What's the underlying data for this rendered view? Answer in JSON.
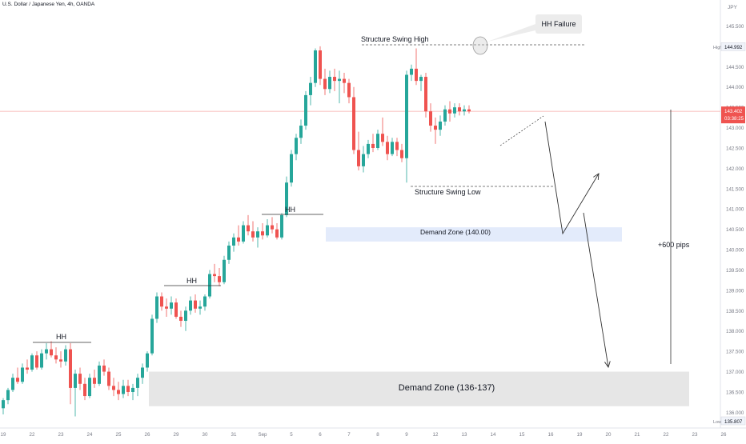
{
  "header": {
    "symbol_title": "U.S. Dollar / Japanese Yen, 4h, OANDA"
  },
  "currency_label": "JPY",
  "axis_badges": {
    "high_label": "High",
    "high_value": "144.992",
    "low_label": "Low",
    "low_value": "135.807",
    "current_price": "143.402",
    "countdown": "03:38:25"
  },
  "annotations": {
    "hh_failure": "HH Failure",
    "structure_swing_high": "Structure Swing High",
    "structure_swing_low": "Structure Swing Low",
    "hh_1": "HH",
    "hh_2": "HH",
    "hh_3": "HH",
    "demand_zone_upper": "Demand Zone (140.00)",
    "demand_zone_lower": "Demand Zone (136-137)",
    "pips_measure": "+600 pips"
  },
  "colors": {
    "up": "#26a69a",
    "down": "#ef5350",
    "upper_zone": "#e3ebfb",
    "lower_zone": "#e6e6e6",
    "text": "#131722",
    "axis_text": "#787b86"
  },
  "chart_data": {
    "type": "candlestick",
    "timeframe": "4h",
    "y_ticks": [
      136.0,
      136.5,
      137.0,
      137.5,
      138.0,
      138.5,
      139.0,
      139.5,
      140.0,
      140.5,
      141.0,
      141.5,
      142.0,
      142.5,
      143.0,
      143.5,
      144.0,
      144.5,
      145.0,
      145.5
    ],
    "y_tick_labels": [
      "136.000",
      "136.500",
      "137.000",
      "137.500",
      "138.000",
      "138.500",
      "139.000",
      "139.500",
      "140.000",
      "140.500",
      "141.000",
      "141.500",
      "142.000",
      "142.500",
      "143.000",
      "143.500",
      "144.000",
      "144.500",
      "145.000",
      "145.500"
    ],
    "ylim": [
      135.75,
      145.75
    ],
    "x_ticks": [
      {
        "label": "19",
        "index": 0
      },
      {
        "label": "22",
        "index": 6
      },
      {
        "label": "23",
        "index": 12
      },
      {
        "label": "24",
        "index": 18
      },
      {
        "label": "25",
        "index": 24
      },
      {
        "label": "26",
        "index": 30
      },
      {
        "label": "29",
        "index": 36
      },
      {
        "label": "30",
        "index": 42
      },
      {
        "label": "31",
        "index": 48
      },
      {
        "label": "Sep",
        "index": 54
      },
      {
        "label": "5",
        "index": 60
      },
      {
        "label": "6",
        "index": 66
      },
      {
        "label": "7",
        "index": 72
      },
      {
        "label": "8",
        "index": 78
      },
      {
        "label": "9",
        "index": 84
      },
      {
        "label": "12",
        "index": 90
      },
      {
        "label": "13",
        "index": 96
      },
      {
        "label": "14",
        "index": 102
      },
      {
        "label": "15",
        "index": 108
      },
      {
        "label": "16",
        "index": 114
      },
      {
        "label": "19",
        "index": 120
      },
      {
        "label": "20",
        "index": 126
      },
      {
        "label": "21",
        "index": 132
      },
      {
        "label": "22",
        "index": 138
      },
      {
        "label": "23",
        "index": 144
      },
      {
        "label": "26",
        "index": 150
      }
    ],
    "ohlc": [
      [
        136.1,
        136.35,
        135.95,
        136.3
      ],
      [
        136.3,
        136.6,
        136.2,
        136.55
      ],
      [
        136.55,
        136.95,
        136.5,
        136.85
      ],
      [
        136.85,
        137.1,
        136.7,
        136.75
      ],
      [
        136.75,
        137.2,
        136.7,
        137.1
      ],
      [
        137.1,
        137.3,
        136.95,
        137.05
      ],
      [
        137.05,
        137.45,
        137.0,
        137.4
      ],
      [
        137.4,
        137.5,
        137.05,
        137.1
      ],
      [
        137.1,
        137.55,
        137.05,
        137.45
      ],
      [
        137.45,
        137.7,
        137.3,
        137.55
      ],
      [
        137.55,
        137.75,
        137.35,
        137.4
      ],
      [
        137.4,
        137.6,
        137.2,
        137.3
      ],
      [
        137.3,
        137.5,
        137.1,
        137.25
      ],
      [
        137.25,
        137.65,
        137.15,
        137.55
      ],
      [
        137.55,
        137.7,
        136.2,
        136.6
      ],
      [
        136.6,
        137.05,
        135.9,
        136.95
      ],
      [
        136.95,
        137.1,
        136.55,
        136.7
      ],
      [
        136.7,
        136.85,
        136.3,
        136.4
      ],
      [
        136.4,
        136.95,
        136.35,
        136.85
      ],
      [
        136.85,
        137.05,
        136.6,
        136.7
      ],
      [
        136.7,
        137.25,
        136.65,
        137.15
      ],
      [
        137.15,
        137.3,
        136.9,
        137.0
      ],
      [
        137.0,
        137.1,
        136.55,
        136.65
      ],
      [
        136.65,
        136.85,
        136.4,
        136.55
      ],
      [
        136.55,
        136.75,
        136.3,
        136.45
      ],
      [
        136.45,
        136.8,
        136.35,
        136.65
      ],
      [
        136.65,
        136.8,
        136.4,
        136.5
      ],
      [
        136.5,
        136.7,
        136.3,
        136.6
      ],
      [
        136.6,
        136.95,
        136.4,
        136.85
      ],
      [
        136.85,
        137.2,
        136.7,
        137.1
      ],
      [
        137.1,
        137.5,
        137.0,
        137.45
      ],
      [
        137.45,
        138.4,
        137.4,
        138.3
      ],
      [
        138.3,
        138.95,
        138.2,
        138.85
      ],
      [
        138.85,
        138.95,
        138.5,
        138.6
      ],
      [
        138.6,
        138.8,
        138.35,
        138.55
      ],
      [
        138.55,
        138.85,
        138.4,
        138.7
      ],
      [
        138.7,
        138.8,
        138.3,
        138.35
      ],
      [
        138.35,
        138.5,
        138.1,
        138.25
      ],
      [
        138.25,
        138.6,
        138.0,
        138.5
      ],
      [
        138.5,
        138.85,
        138.4,
        138.75
      ],
      [
        138.75,
        138.9,
        138.45,
        138.55
      ],
      [
        138.55,
        138.75,
        138.4,
        138.6
      ],
      [
        138.6,
        138.9,
        138.5,
        138.85
      ],
      [
        138.85,
        139.5,
        138.8,
        139.4
      ],
      [
        139.4,
        139.65,
        139.2,
        139.35
      ],
      [
        139.35,
        139.55,
        139.1,
        139.2
      ],
      [
        139.2,
        139.85,
        139.15,
        139.75
      ],
      [
        139.75,
        140.2,
        139.65,
        140.1
      ],
      [
        140.1,
        140.4,
        139.95,
        140.3
      ],
      [
        140.3,
        140.6,
        140.1,
        140.2
      ],
      [
        140.2,
        140.7,
        140.15,
        140.6
      ],
      [
        140.6,
        140.85,
        140.35,
        140.45
      ],
      [
        140.45,
        140.7,
        140.2,
        140.3
      ],
      [
        140.3,
        140.55,
        140.05,
        140.45
      ],
      [
        140.45,
        140.65,
        140.25,
        140.35
      ],
      [
        140.35,
        140.75,
        140.3,
        140.6
      ],
      [
        140.6,
        140.8,
        140.4,
        140.5
      ],
      [
        140.5,
        140.65,
        140.25,
        140.3
      ],
      [
        140.3,
        140.9,
        140.25,
        140.85
      ],
      [
        140.85,
        141.8,
        140.8,
        141.65
      ],
      [
        141.65,
        142.45,
        141.55,
        142.35
      ],
      [
        142.35,
        142.85,
        142.2,
        142.75
      ],
      [
        142.75,
        143.2,
        142.6,
        143.05
      ],
      [
        143.05,
        143.9,
        142.95,
        143.8
      ],
      [
        143.8,
        144.25,
        143.55,
        144.1
      ],
      [
        144.1,
        144.95,
        144.0,
        144.9
      ],
      [
        144.9,
        145.0,
        144.05,
        144.2
      ],
      [
        144.2,
        144.45,
        143.8,
        143.95
      ],
      [
        143.95,
        144.4,
        143.85,
        144.25
      ],
      [
        144.25,
        144.45,
        143.9,
        144.15
      ],
      [
        144.15,
        144.4,
        143.6,
        144.2
      ],
      [
        144.2,
        144.35,
        143.85,
        144.1
      ],
      [
        144.1,
        144.2,
        143.6,
        143.75
      ],
      [
        143.75,
        144.0,
        142.35,
        142.45
      ],
      [
        142.45,
        142.9,
        141.95,
        142.05
      ],
      [
        142.05,
        142.55,
        141.9,
        142.35
      ],
      [
        142.35,
        142.7,
        142.25,
        142.6
      ],
      [
        142.6,
        142.85,
        142.4,
        142.5
      ],
      [
        142.5,
        142.95,
        142.45,
        142.85
      ],
      [
        142.85,
        143.25,
        142.55,
        142.65
      ],
      [
        142.65,
        142.8,
        142.2,
        142.35
      ],
      [
        142.35,
        142.75,
        142.3,
        142.65
      ],
      [
        142.65,
        142.75,
        142.3,
        142.45
      ],
      [
        142.45,
        142.6,
        142.15,
        142.25
      ],
      [
        142.25,
        144.4,
        141.65,
        144.3
      ],
      [
        144.3,
        144.55,
        144.15,
        144.45
      ],
      [
        144.45,
        144.95,
        144.05,
        144.15
      ],
      [
        144.15,
        144.3,
        143.9,
        144.25
      ],
      [
        144.25,
        144.35,
        143.25,
        143.4
      ],
      [
        143.4,
        143.6,
        142.9,
        143.05
      ],
      [
        143.05,
        143.25,
        142.6,
        142.95
      ],
      [
        142.95,
        143.3,
        142.8,
        143.15
      ],
      [
        143.15,
        143.55,
        143.05,
        143.45
      ],
      [
        143.45,
        143.65,
        143.15,
        143.35
      ],
      [
        143.35,
        143.6,
        143.25,
        143.5
      ],
      [
        143.5,
        143.6,
        143.3,
        143.4
      ],
      [
        143.4,
        143.55,
        143.3,
        143.45
      ],
      [
        143.45,
        143.55,
        143.35,
        143.4
      ]
    ],
    "zones": [
      {
        "label": "Demand Zone (140.00)",
        "price_top": 140.55,
        "price_bottom": 140.2
      },
      {
        "label": "Demand Zone (136-137)",
        "price_top": 137.0,
        "price_bottom": 136.15
      }
    ],
    "levels": {
      "current_price": 143.402,
      "high": 144.992,
      "low": 135.807
    }
  }
}
